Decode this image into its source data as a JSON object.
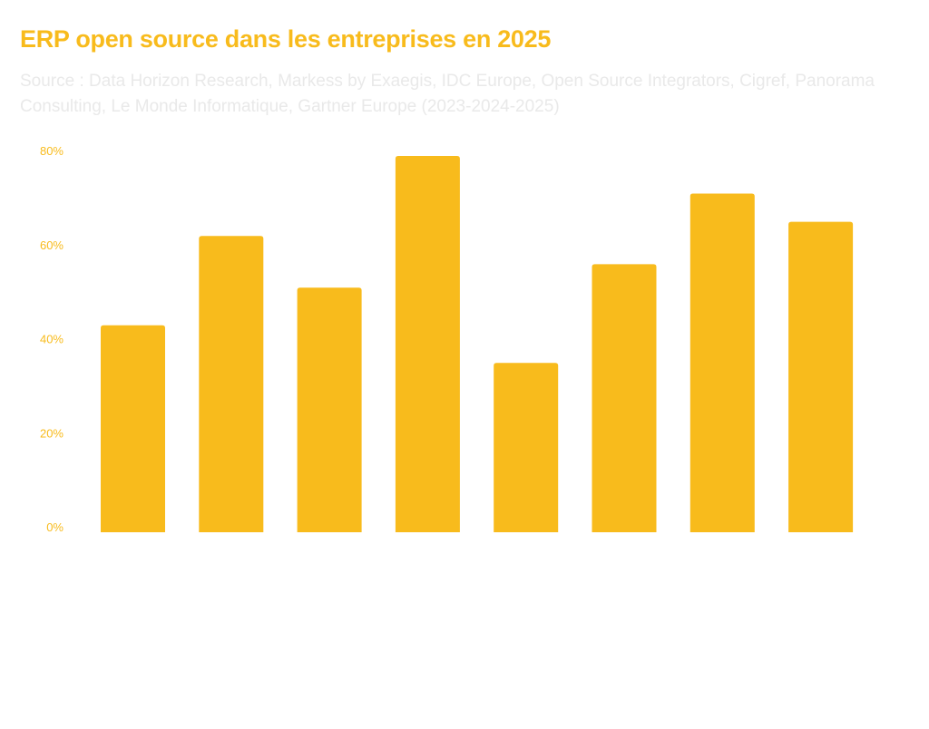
{
  "chart_data": {
    "type": "bar",
    "title": "ERP open source dans les entreprises en 2025",
    "subtitle": "Source : Data Horizon Research, Markess by Exaegis, IDC Europe, Open Source Integrators, Cigref, Panorama Consulting, Le Monde Informatique, Gartner Europe (2023-2024-2025)",
    "xlabel": "",
    "ylabel": "",
    "categories": [
      "",
      "",
      "",
      "",
      "",
      "",
      "",
      ""
    ],
    "values": [
      44,
      63,
      52,
      80,
      36,
      57,
      72,
      66
    ],
    "ylim": [
      0,
      80
    ],
    "yticks": [
      0,
      20,
      40,
      60,
      80
    ],
    "ytick_labels": [
      "0%",
      "20%",
      "40%",
      "60%",
      "80%"
    ],
    "grid": false,
    "bar_color": "#f8bb1c",
    "title_color": "#f8bb1c",
    "subtitle_color": "#e9e9e9"
  }
}
